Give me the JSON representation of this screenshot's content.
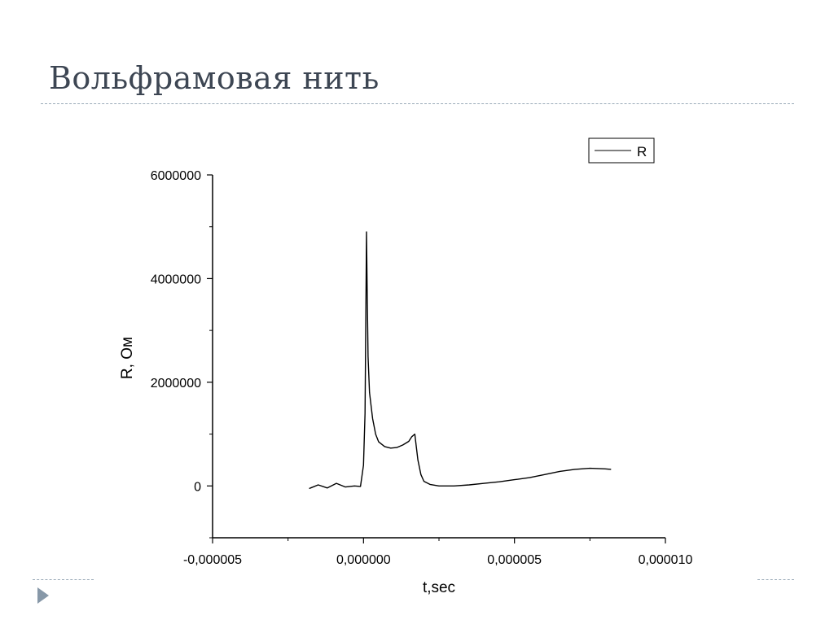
{
  "slide": {
    "title": "Вольфрамовая нить"
  },
  "icons": {
    "nav": "triangle-right-icon"
  },
  "chart_data": {
    "type": "line",
    "title": "",
    "xlabel": "t,sec",
    "ylabel": "R, Ом",
    "xlim": [
      -5e-06,
      1e-05
    ],
    "ylim": [
      -1000000,
      6000000
    ],
    "x_ticks": [
      {
        "value": -5e-06,
        "label": "-0,000005"
      },
      {
        "value": 0,
        "label": "0,000000"
      },
      {
        "value": 5e-06,
        "label": "0,000005"
      },
      {
        "value": 1e-05,
        "label": "0,000010"
      }
    ],
    "y_ticks": [
      {
        "value": 0,
        "label": "0"
      },
      {
        "value": 2000000,
        "label": "2000000"
      },
      {
        "value": 4000000,
        "label": "4000000"
      },
      {
        "value": 6000000,
        "label": "6000000"
      }
    ],
    "legend": {
      "position": "top-right",
      "entries": [
        "R"
      ]
    },
    "grid": false,
    "line_color": "#000000",
    "series": [
      {
        "name": "R",
        "x": [
          -1.8e-06,
          -1.5e-06,
          -1.2e-06,
          -9e-07,
          -6e-07,
          -3e-07,
          -1e-07,
          0.0,
          5e-08,
          1e-07,
          1.2e-07,
          1.5e-07,
          2e-07,
          3e-07,
          4e-07,
          5e-07,
          7e-07,
          9e-07,
          1.1e-06,
          1.3e-06,
          1.5e-06,
          1.6e-06,
          1.7e-06,
          1.8e-06,
          1.9e-06,
          2e-06,
          2.2e-06,
          2.5e-06,
          3e-06,
          3.5e-06,
          4e-06,
          4.5e-06,
          5e-06,
          5.5e-06,
          6e-06,
          6.5e-06,
          7e-06,
          7.5e-06,
          8e-06,
          8.2e-06
        ],
        "y": [
          -50000,
          20000,
          -40000,
          50000,
          -20000,
          0,
          -10000,
          400000,
          1400000,
          4900000,
          3800000,
          2500000,
          1800000,
          1300000,
          1000000,
          850000,
          760000,
          730000,
          740000,
          790000,
          860000,
          950000,
          1000000,
          500000,
          220000,
          90000,
          30000,
          0,
          0,
          20000,
          50000,
          80000,
          120000,
          160000,
          220000,
          280000,
          320000,
          340000,
          330000,
          320000
        ]
      }
    ]
  }
}
